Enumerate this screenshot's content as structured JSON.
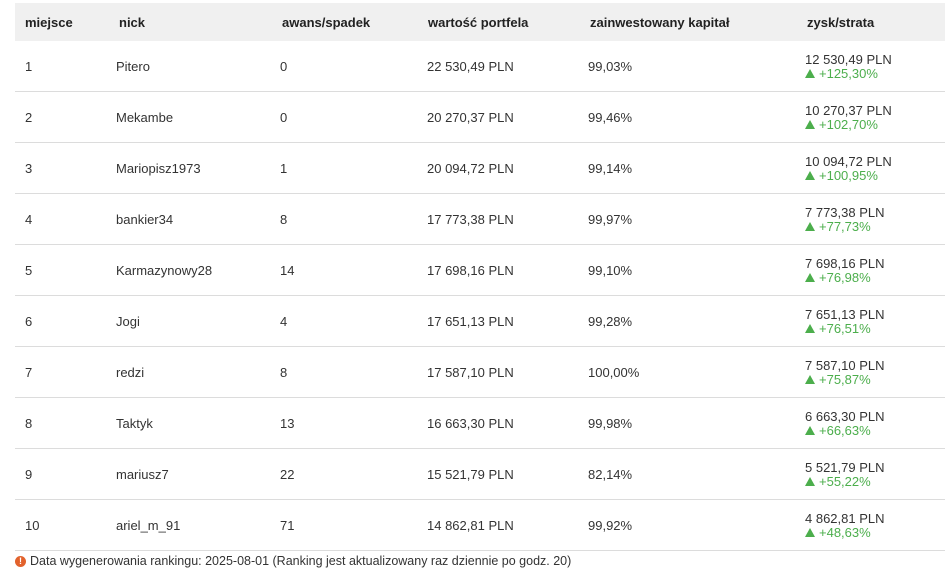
{
  "colors": {
    "header_bg": "#f0f0f0",
    "gain_green": "#4cae4c",
    "info_orange": "#e2622c",
    "row_divider": "#dcdcdc"
  },
  "header": {
    "place": "miejsce",
    "nick": "nick",
    "promotion": "awans/spadek",
    "portfolio_value": "wartość portfela",
    "invested_capital": "zainwestowany kapitał",
    "profit_loss": "zysk/strata"
  },
  "rows": [
    {
      "place": "1",
      "nick": "Pitero",
      "promotion": "0",
      "portfolio_value": "22 530,49 PLN",
      "invested_capital": "99,03%",
      "profit_value": "12 530,49 PLN",
      "profit_pct": "+125,30%"
    },
    {
      "place": "2",
      "nick": "Mekambe",
      "promotion": "0",
      "portfolio_value": "20 270,37 PLN",
      "invested_capital": "99,46%",
      "profit_value": "10 270,37 PLN",
      "profit_pct": "+102,70%"
    },
    {
      "place": "3",
      "nick": "Mariopisz1973",
      "promotion": "1",
      "portfolio_value": "20 094,72 PLN",
      "invested_capital": "99,14%",
      "profit_value": "10 094,72 PLN",
      "profit_pct": "+100,95%"
    },
    {
      "place": "4",
      "nick": "bankier34",
      "promotion": "8",
      "portfolio_value": "17 773,38 PLN",
      "invested_capital": "99,97%",
      "profit_value": "7 773,38 PLN",
      "profit_pct": "+77,73%"
    },
    {
      "place": "5",
      "nick": "Karmazynowy28",
      "promotion": "14",
      "portfolio_value": "17 698,16 PLN",
      "invested_capital": "99,10%",
      "profit_value": "7 698,16 PLN",
      "profit_pct": "+76,98%"
    },
    {
      "place": "6",
      "nick": "Jogi",
      "promotion": "4",
      "portfolio_value": "17 651,13 PLN",
      "invested_capital": "99,28%",
      "profit_value": "7 651,13 PLN",
      "profit_pct": "+76,51%"
    },
    {
      "place": "7",
      "nick": "redzi",
      "promotion": "8",
      "portfolio_value": "17 587,10 PLN",
      "invested_capital": "100,00%",
      "profit_value": "7 587,10 PLN",
      "profit_pct": "+75,87%"
    },
    {
      "place": "8",
      "nick": "Taktyk",
      "promotion": "13",
      "portfolio_value": "16 663,30 PLN",
      "invested_capital": "99,98%",
      "profit_value": "6 663,30 PLN",
      "profit_pct": "+66,63%"
    },
    {
      "place": "9",
      "nick": "mariusz7",
      "promotion": "22",
      "portfolio_value": "15 521,79 PLN",
      "invested_capital": "82,14%",
      "profit_value": "5 521,79 PLN",
      "profit_pct": "+55,22%"
    },
    {
      "place": "10",
      "nick": "ariel_m_91",
      "promotion": "71",
      "portfolio_value": "14 862,81 PLN",
      "invested_capital": "99,92%",
      "profit_value": "4 862,81 PLN",
      "profit_pct": "+48,63%"
    }
  ],
  "icons": {
    "gain": "triangle-up-icon",
    "info": "info-icon"
  },
  "footer": {
    "info_glyph": "!",
    "text": "Data wygenerowania rankingu: 2025-08-01 (Ranking jest aktualizowany raz dziennie po godz. 20)"
  }
}
